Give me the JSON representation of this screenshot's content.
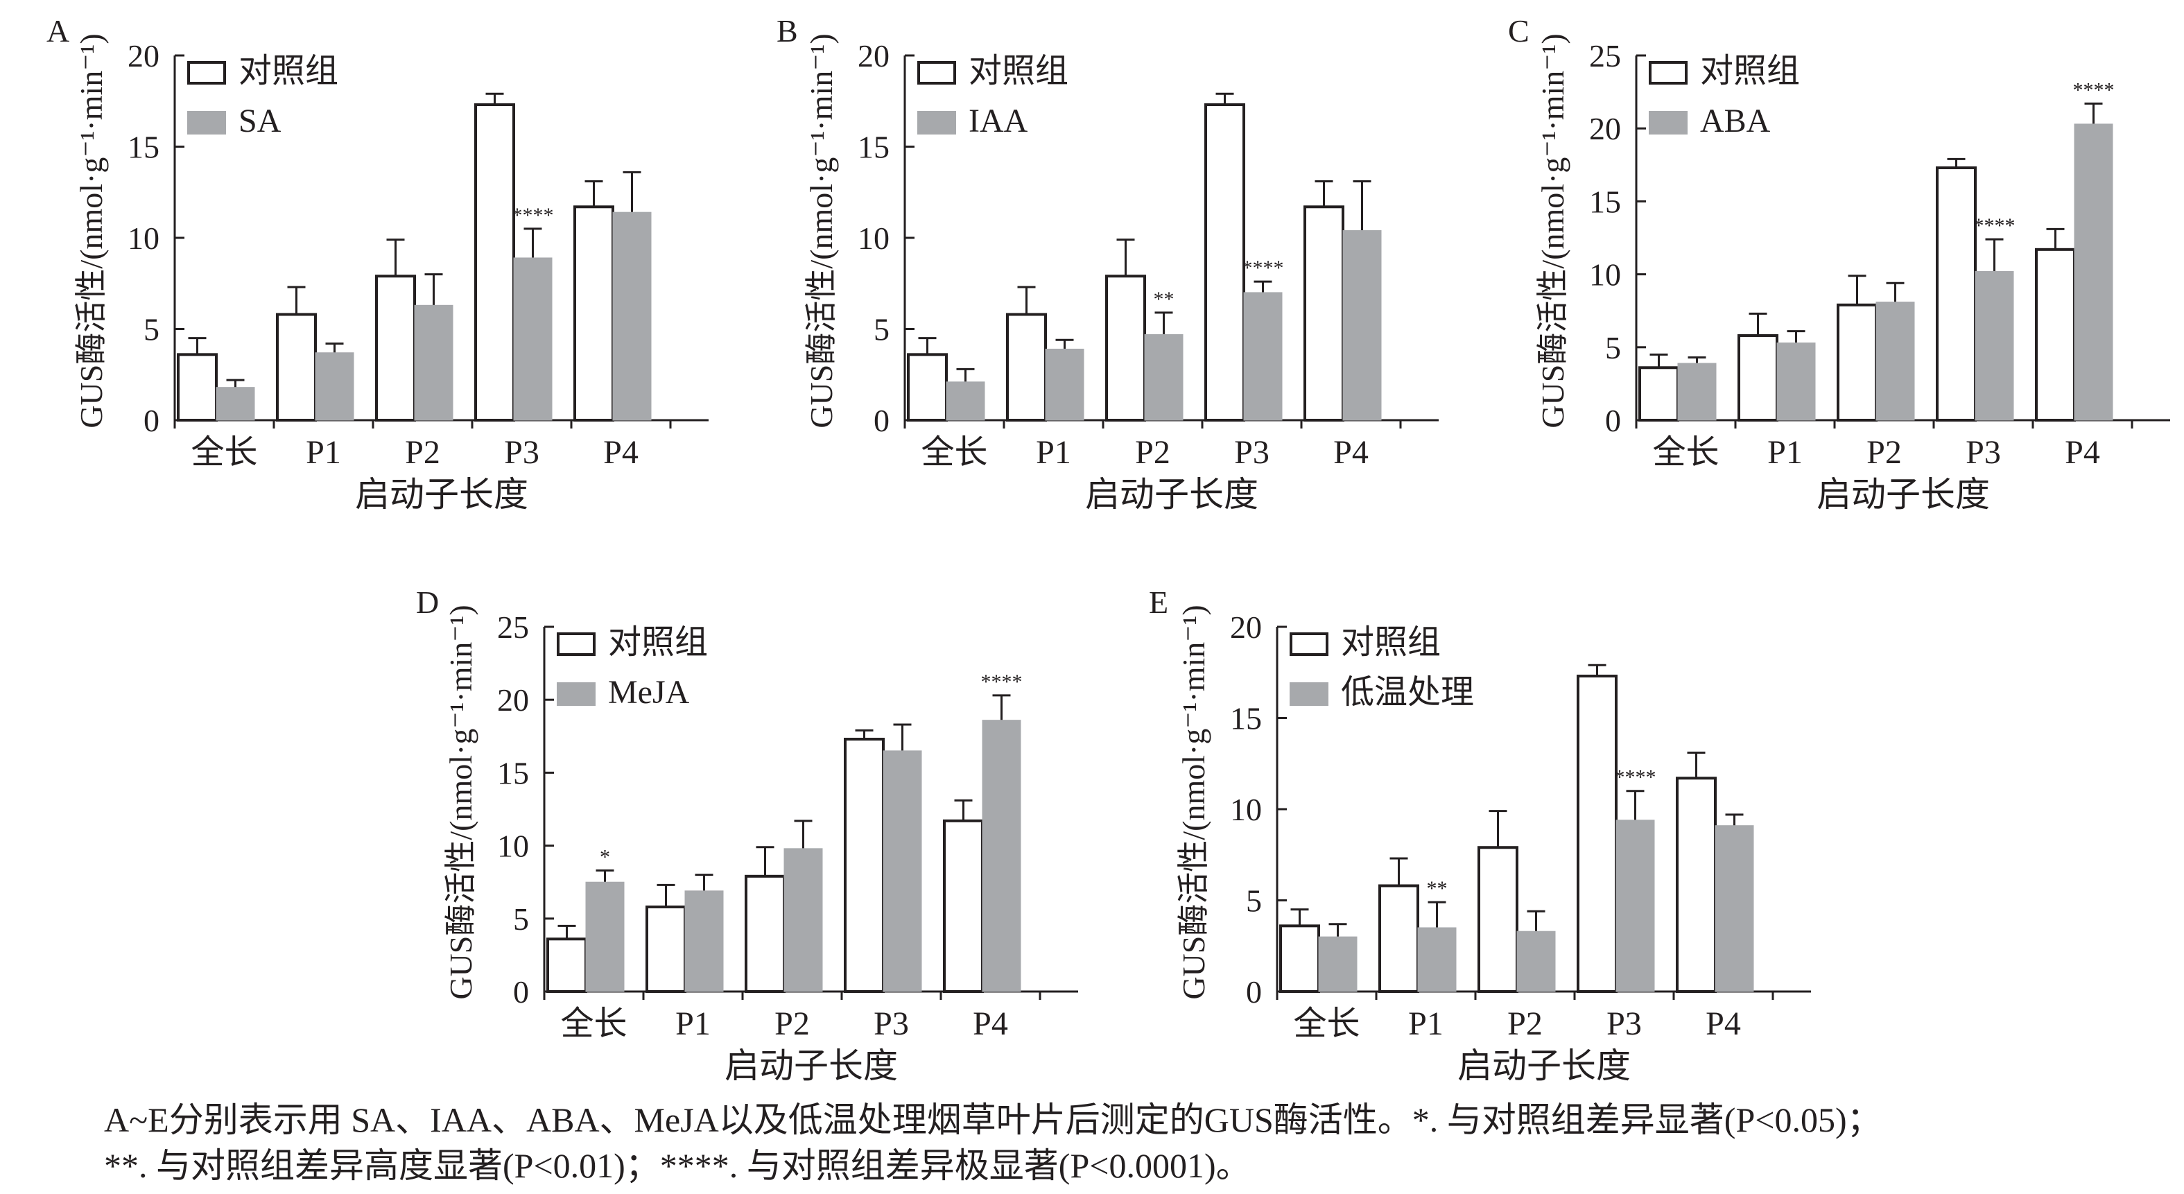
{
  "chart_data": [
    {
      "type": "bar",
      "panel_label": "A",
      "categories": [
        "全长",
        "P1",
        "P2",
        "P3",
        "P4"
      ],
      "xlabel": "启动子长度",
      "ylabel": "GUS酶活性/(nmol·g⁻¹·min⁻¹)",
      "ylim": [
        0,
        20
      ],
      "yticks": [
        0,
        5,
        10,
        15,
        20
      ],
      "series": [
        {
          "name": "对照组",
          "values": [
            3.6,
            5.8,
            7.9,
            17.3,
            11.7
          ],
          "errors": [
            0.9,
            1.5,
            2.0,
            0.6,
            1.4
          ]
        },
        {
          "name": "SA",
          "values": [
            1.8,
            3.7,
            6.3,
            8.9,
            11.4
          ],
          "errors": [
            0.4,
            0.5,
            1.7,
            1.6,
            2.2
          ]
        }
      ],
      "annotations": [
        {
          "category_index": 3,
          "series_index": 1,
          "text": "****"
        }
      ],
      "legend": "top-left",
      "grid": false
    },
    {
      "type": "bar",
      "panel_label": "B",
      "categories": [
        "全长",
        "P1",
        "P2",
        "P3",
        "P4"
      ],
      "xlabel": "启动子长度",
      "ylabel": "GUS酶活性/(nmol·g⁻¹·min⁻¹)",
      "ylim": [
        0,
        20
      ],
      "yticks": [
        0,
        5,
        10,
        15,
        20
      ],
      "series": [
        {
          "name": "对照组",
          "values": [
            3.6,
            5.8,
            7.9,
            17.3,
            11.7
          ],
          "errors": [
            0.9,
            1.5,
            2.0,
            0.6,
            1.4
          ]
        },
        {
          "name": "IAA",
          "values": [
            2.1,
            3.9,
            4.7,
            7.0,
            10.4
          ],
          "errors": [
            0.7,
            0.5,
            1.2,
            0.6,
            2.7
          ]
        }
      ],
      "annotations": [
        {
          "category_index": 2,
          "series_index": 1,
          "text": "**"
        },
        {
          "category_index": 3,
          "series_index": 1,
          "text": "****"
        }
      ],
      "legend": "top-left",
      "grid": false
    },
    {
      "type": "bar",
      "panel_label": "C",
      "categories": [
        "全长",
        "P1",
        "P2",
        "P3",
        "P4"
      ],
      "xlabel": "启动子长度",
      "ylabel": "GUS酶活性/(nmol·g⁻¹·min⁻¹)",
      "ylim": [
        0,
        25
      ],
      "yticks": [
        0,
        5,
        10,
        15,
        20,
        25
      ],
      "series": [
        {
          "name": "对照组",
          "values": [
            3.6,
            5.8,
            7.9,
            17.3,
            11.7
          ],
          "errors": [
            0.9,
            1.5,
            2.0,
            0.6,
            1.4
          ]
        },
        {
          "name": "ABA",
          "values": [
            3.9,
            5.3,
            8.1,
            10.2,
            20.3
          ],
          "errors": [
            0.4,
            0.8,
            1.3,
            2.2,
            1.4
          ]
        }
      ],
      "annotations": [
        {
          "category_index": 3,
          "series_index": 1,
          "text": "****"
        },
        {
          "category_index": 4,
          "series_index": 1,
          "text": "****"
        }
      ],
      "legend": "top-left",
      "grid": false
    },
    {
      "type": "bar",
      "panel_label": "D",
      "categories": [
        "全长",
        "P1",
        "P2",
        "P3",
        "P4"
      ],
      "xlabel": "启动子长度",
      "ylabel": "GUS酶活性/(nmol·g⁻¹·min⁻¹)",
      "ylim": [
        0,
        25
      ],
      "yticks": [
        0,
        5,
        10,
        15,
        20,
        25
      ],
      "series": [
        {
          "name": "对照组",
          "values": [
            3.6,
            5.8,
            7.9,
            17.3,
            11.7
          ],
          "errors": [
            0.9,
            1.5,
            2.0,
            0.6,
            1.4
          ]
        },
        {
          "name": "MeJA",
          "values": [
            7.5,
            6.9,
            9.8,
            16.5,
            18.6
          ],
          "errors": [
            0.8,
            1.1,
            1.9,
            1.8,
            1.7
          ]
        }
      ],
      "annotations": [
        {
          "category_index": 0,
          "series_index": 1,
          "text": "*"
        },
        {
          "category_index": 4,
          "series_index": 1,
          "text": "****"
        }
      ],
      "legend": "top-left",
      "grid": false
    },
    {
      "type": "bar",
      "panel_label": "E",
      "categories": [
        "全长",
        "P1",
        "P2",
        "P3",
        "P4"
      ],
      "xlabel": "启动子长度",
      "ylabel": "GUS酶活性/(nmol·g⁻¹·min⁻¹)",
      "ylim": [
        0,
        20
      ],
      "yticks": [
        0,
        5,
        10,
        15,
        20
      ],
      "series": [
        {
          "name": "对照组",
          "values": [
            3.6,
            5.8,
            7.9,
            17.3,
            11.7
          ],
          "errors": [
            0.9,
            1.5,
            2.0,
            0.6,
            1.4
          ]
        },
        {
          "name": "低温处理",
          "values": [
            3.0,
            3.5,
            3.3,
            9.4,
            9.1
          ],
          "errors": [
            0.7,
            1.4,
            1.1,
            1.6,
            0.6
          ]
        }
      ],
      "annotations": [
        {
          "category_index": 1,
          "series_index": 1,
          "text": "**"
        },
        {
          "category_index": 3,
          "series_index": 1,
          "text": "****"
        }
      ],
      "legend": "top-left",
      "grid": false
    }
  ],
  "colors": {
    "control_fill": "#ffffff",
    "treatment_fill": "#a7a9ac",
    "ink": "#231f20"
  },
  "caption": {
    "line1": "A~E分别表示用 SA、IAA、ABA、MeJA以及低温处理烟草叶片后测定的GUS酶活性。*. 与对照组差异显著(P<0.05)；",
    "line2": "**. 与对照组差异高度显著(P<0.01)；****. 与对照组差异极显著(P<0.0001)。"
  }
}
